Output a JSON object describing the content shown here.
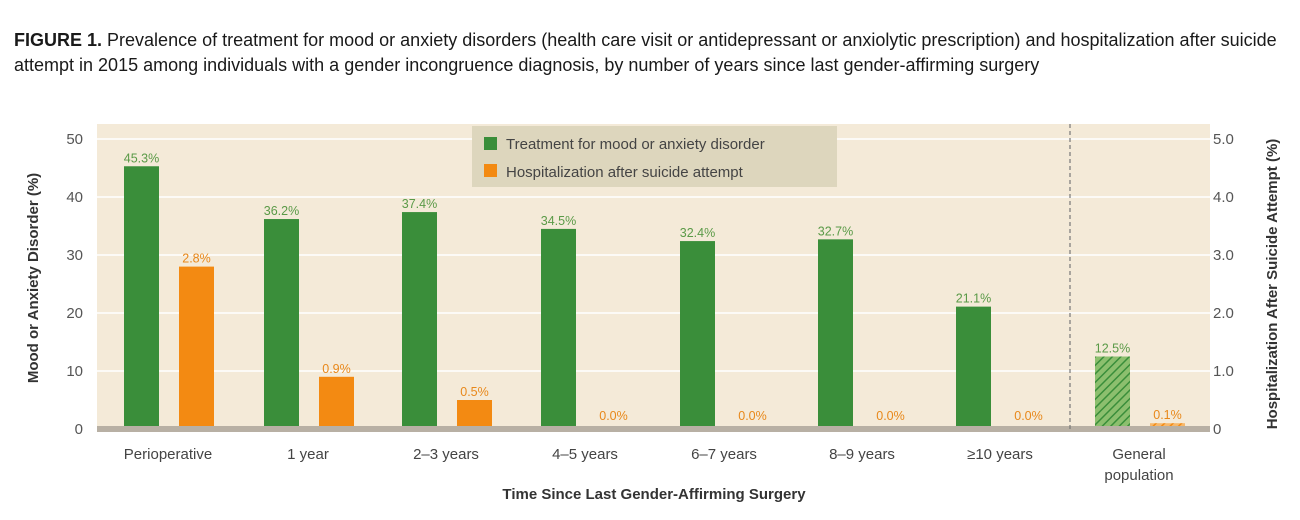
{
  "figure": {
    "label": "FIGURE 1.",
    "title": "Prevalence of treatment for mood or anxiety disorders (health care visit or antidepressant or anxiolytic prescription) and hospitalization after suicide attempt in 2015 among individuals with a gender incongruence diagnosis, by number of years since last gender-affirming surgery"
  },
  "colors": {
    "plot_background": "#f4ead8",
    "treatment": "#3a8e3a",
    "hospitalization": "#f38a12",
    "baseline": "#b8b0a4",
    "legend_background": "#ddd6bd"
  },
  "chart_data": {
    "type": "bar",
    "categories": [
      "Perioperative",
      "1 year",
      "2–3 years",
      "4–5 years",
      "6–7 years",
      "8–9 years",
      "≥10 years",
      "General population"
    ],
    "series": [
      {
        "name": "Treatment for mood or anxiety disorder",
        "axis": "left",
        "values": [
          45.3,
          36.2,
          37.4,
          34.5,
          32.4,
          32.7,
          21.1,
          12.5
        ],
        "labels": [
          "45.3%",
          "36.2%",
          "37.4%",
          "34.5%",
          "32.4%",
          "32.7%",
          "21.1%",
          "12.5%"
        ]
      },
      {
        "name": "Hospitalization after suicide attempt",
        "axis": "right",
        "values": [
          2.8,
          0.9,
          0.5,
          0.0,
          0.0,
          0.0,
          0.0,
          0.1
        ],
        "labels": [
          "2.8%",
          "0.9%",
          "0.5%",
          "0.0%",
          "0.0%",
          "0.0%",
          "0.0%",
          "0.1%"
        ]
      }
    ],
    "xlabel": "Time Since Last Gender-Affirming Surgery",
    "ylabel_left": "Mood or Anxiety Disorder (%)",
    "ylabel_right": "Hospitalization After Suicide Attempt (%)",
    "ylim_left": [
      0,
      50
    ],
    "ylim_right": [
      0,
      5
    ],
    "yticks_left": [
      "0",
      "10",
      "20",
      "30",
      "40",
      "50"
    ],
    "yticks_right": [
      "0",
      "1.0",
      "2.0",
      "3.0",
      "4.0",
      "5.0"
    ],
    "grid": true,
    "legend": "top-center",
    "hatched_category": "General population",
    "separator_before": "General population"
  }
}
